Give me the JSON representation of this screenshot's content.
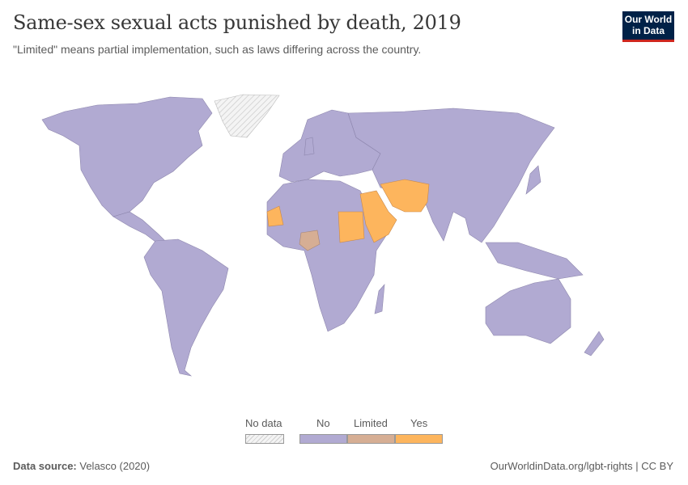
{
  "header": {
    "title": "Same-sex sexual acts punished by death, 2019",
    "subtitle": "\"Limited\" means partial implementation, such as laws differing across the country.",
    "logo_line1": "Our World",
    "logo_line2": "in Data"
  },
  "colors": {
    "no": "#b1aad2",
    "limited": "#d6ae94",
    "yes": "#fdb55d",
    "no_data": "#eeeeee",
    "border": "#8d86ad"
  },
  "legend": {
    "no_data": "No data",
    "no": "No",
    "limited": "Limited",
    "yes": "Yes"
  },
  "map_data": {
    "yes": [
      "Mauritania",
      "Sudan",
      "Saudi Arabia",
      "Yemen",
      "Qatar",
      "United Arab Emirates",
      "Iran",
      "Afghanistan",
      "Pakistan"
    ],
    "limited": [
      "Nigeria"
    ],
    "no_data": [
      "Greenland"
    ],
    "default": "No"
  },
  "footer": {
    "source_label": "Data source:",
    "source": "Velasco (2020)",
    "url": "OurWorldinData.org/lgbt-rights | CC BY"
  }
}
